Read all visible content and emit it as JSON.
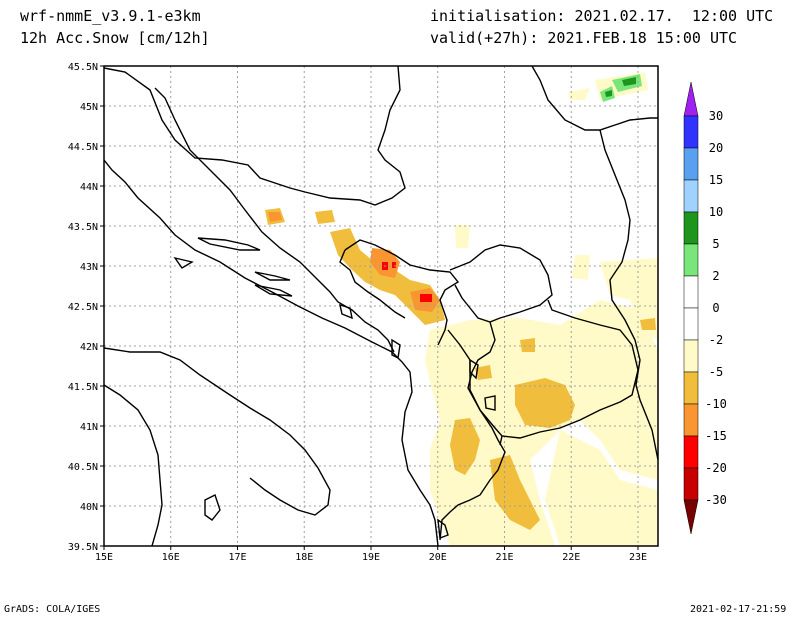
{
  "header": {
    "model": "wrf-nmmE_v3.9.1-e3km",
    "field": "12h Acc.Snow [cm/12h]",
    "init_label": "initialisation:",
    "init_value": "2021.02.17.  12:00 UTC",
    "valid_label": "valid(+27h):",
    "valid_value": "2021.FEB.18 15:00 UTC"
  },
  "map": {
    "lon_ticks": [
      "15E",
      "16E",
      "17E",
      "18E",
      "19E",
      "20E",
      "21E",
      "22E",
      "23E"
    ],
    "lat_ticks": [
      "45.5N",
      "45N",
      "44.5N",
      "44N",
      "43.5N",
      "43N",
      "42.5N",
      "42N",
      "41.5N",
      "41N",
      "40.5N",
      "40N",
      "39.5N"
    ]
  },
  "legend": {
    "labels": [
      "30",
      "20",
      "15",
      "10",
      "5",
      "2",
      "0",
      "-2",
      "-5",
      "-10",
      "-15",
      "-20",
      "-30"
    ],
    "colors": {
      "top_arrow": "#a020f0",
      "c20_30": "#3232ff",
      "c15_20": "#5aa0f0",
      "c10_15": "#a0d2ff",
      "c5_10": "#1e961e",
      "c2_5": "#78e678",
      "c_2_2": "#ffffff",
      "c_5_m2": "#fffac8",
      "c_10_m5": "#f0be3c",
      "c_15_m10": "#fa9632",
      "c_20_m15": "#ff0000",
      "c_30_m20": "#c80000",
      "bottom_arrow": "#780000"
    }
  },
  "footer": {
    "left": "GrADS: COLA/IGES",
    "right": "2021-02-17-21:59"
  }
}
